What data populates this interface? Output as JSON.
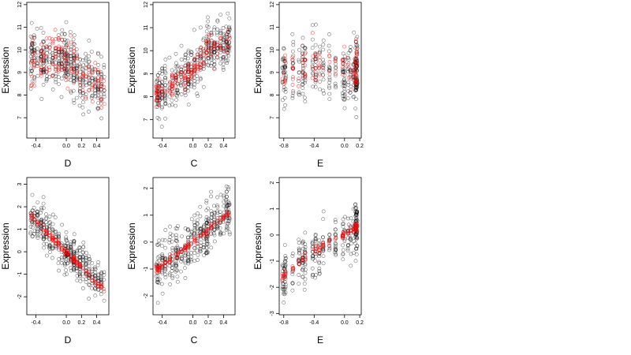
{
  "chart_data": [
    {
      "type": "scatter",
      "panel": "top-left",
      "xlabel": "D",
      "ylabel": "Expression",
      "xticks": [
        -0.4,
        0.0,
        0.2,
        0.4
      ],
      "xtick_labels": [
        "-0.4",
        "0.0",
        "0.2",
        "0.4"
      ],
      "yticks": [
        7,
        8,
        9,
        10,
        11,
        12
      ],
      "ytick_labels": [
        "7",
        "8",
        "9",
        "10",
        "11",
        "12"
      ],
      "xlim": [
        -0.52,
        0.56
      ],
      "ylim": [
        6.1,
        12.1
      ],
      "grid": false,
      "series": [
        {
          "color": "#000000",
          "marker": "open-circle",
          "description": "observed expression points (dense at x=0.0 and x=0.1)",
          "n_points": 420,
          "x_range": [
            -0.47,
            0.5
          ],
          "y_center_trend": [
            [
              -0.47,
              9.6
            ],
            [
              -0.2,
              9.5
            ],
            [
              0.0,
              9.7
            ],
            [
              0.1,
              9.3
            ],
            [
              0.2,
              8.6
            ],
            [
              0.5,
              8.2
            ]
          ],
          "y_spread": 1.1
        },
        {
          "color": "#ff0000",
          "marker": "open-circle",
          "description": "fitted expression points",
          "n_points": 150,
          "x_range": [
            -0.47,
            0.5
          ],
          "y_center_trend": [
            [
              -0.47,
              9.5
            ],
            [
              -0.2,
              9.7
            ],
            [
              0.0,
              9.6
            ],
            [
              0.1,
              9.2
            ],
            [
              0.2,
              8.9
            ],
            [
              0.5,
              8.2
            ]
          ],
          "y_spread": 0.9
        }
      ]
    },
    {
      "type": "scatter",
      "panel": "top-middle",
      "xlabel": "C",
      "ylabel": "Expression",
      "xticks": [
        -0.4,
        0.0,
        0.2,
        0.4
      ],
      "xtick_labels": [
        "-0.4",
        "0.0",
        "0.2",
        "0.4"
      ],
      "yticks": [
        7,
        8,
        9,
        10,
        11,
        12
      ],
      "ytick_labels": [
        "7",
        "8",
        "9",
        "10",
        "11",
        "12"
      ],
      "xlim": [
        -0.52,
        0.55
      ],
      "ylim": [
        6.2,
        12.1
      ],
      "grid": false,
      "series": [
        {
          "color": "#000000",
          "marker": "open-circle",
          "description": "observed expression points",
          "n_points": 420,
          "x_range": [
            -0.48,
            0.48
          ],
          "y_center_trend": [
            [
              -0.48,
              8.1
            ],
            [
              -0.2,
              8.7
            ],
            [
              0.0,
              9.1
            ],
            [
              0.2,
              9.9
            ],
            [
              0.48,
              10.4
            ]
          ],
          "y_spread": 0.9
        },
        {
          "color": "#ff0000",
          "marker": "open-circle",
          "description": "fitted expression points",
          "n_points": 160,
          "x_range": [
            -0.48,
            0.48
          ],
          "y_center_trend": [
            [
              -0.48,
              8.1
            ],
            [
              -0.2,
              8.7
            ],
            [
              0.0,
              9.2
            ],
            [
              0.2,
              9.9
            ],
            [
              0.48,
              10.4
            ]
          ],
          "y_spread": 0.45
        }
      ]
    },
    {
      "type": "scatter",
      "panel": "top-right",
      "xlabel": "E",
      "ylabel": "Expression",
      "xticks": [
        -0.8,
        -0.4,
        0.0,
        0.2
      ],
      "xtick_labels": [
        "-0.8",
        "-0.4",
        "0.0",
        "0.2"
      ],
      "yticks": [
        7,
        8,
        9,
        10,
        11,
        12
      ],
      "ytick_labels": [
        "7",
        "8",
        "9",
        "10",
        "11",
        "12"
      ],
      "xlim": [
        -0.86,
        0.22
      ],
      "ylim": [
        6.1,
        12.1
      ],
      "grid": false,
      "series": [
        {
          "color": "#000000",
          "marker": "open-circle",
          "description": "observed expression points (very dense near x=0.15)",
          "n_points": 330,
          "x_range": [
            -0.82,
            0.17
          ],
          "y_center_trend": [
            [
              -0.82,
              8.9
            ],
            [
              -0.4,
              9.4
            ],
            [
              0.0,
              8.9
            ],
            [
              0.15,
              9.0
            ]
          ],
          "y_spread": 1.2
        },
        {
          "color": "#ff0000",
          "marker": "open-circle",
          "description": "fitted expression points",
          "n_points": 120,
          "x_range": [
            -0.82,
            0.17
          ],
          "y_center_trend": [
            [
              -0.82,
              9.2
            ],
            [
              -0.4,
              9.5
            ],
            [
              0.0,
              9.2
            ],
            [
              0.15,
              9.0
            ]
          ],
          "y_spread": 0.9
        }
      ]
    },
    {
      "type": "scatter",
      "panel": "bottom-left",
      "xlabel": "D",
      "ylabel": "Expression",
      "xticks": [
        -0.4,
        0.0,
        0.2,
        0.4
      ],
      "xtick_labels": [
        "-0.4",
        "0.0",
        "0.2",
        "0.4"
      ],
      "yticks": [
        -2,
        -1,
        0,
        1,
        2,
        3
      ],
      "ytick_labels": [
        "-2",
        "-1",
        "0",
        "1",
        "2",
        "3"
      ],
      "xlim": [
        -0.52,
        0.56
      ],
      "ylim": [
        -2.8,
        3.3
      ],
      "grid": false,
      "series": [
        {
          "color": "#000000",
          "marker": "open-circle",
          "description": "observed expression points",
          "n_points": 420,
          "x_range": [
            -0.47,
            0.5
          ],
          "y_center_trend": [
            [
              -0.47,
              1.6
            ],
            [
              0.0,
              0.0
            ],
            [
              0.5,
              -1.5
            ]
          ],
          "y_spread": 0.75
        },
        {
          "color": "#ff0000",
          "marker": "open-circle",
          "description": "fitted expression points (near-linear decreasing band)",
          "n_points": 140,
          "x_range": [
            -0.47,
            0.5
          ],
          "y_center_trend": [
            [
              -0.47,
              1.6
            ],
            [
              0.0,
              0.0
            ],
            [
              0.5,
              -1.7
            ]
          ],
          "y_spread": 0.12
        }
      ]
    },
    {
      "type": "scatter",
      "panel": "bottom-middle",
      "xlabel": "C",
      "ylabel": "Expression",
      "xticks": [
        -0.4,
        0.0,
        0.2,
        0.4
      ],
      "xtick_labels": [
        "-0.4",
        "0.0",
        "0.2",
        "0.4"
      ],
      "yticks": [
        -2,
        -1,
        0,
        1,
        2
      ],
      "ytick_labels": [
        "-2",
        "-1",
        "0",
        "1",
        "2"
      ],
      "xlim": [
        -0.52,
        0.55
      ],
      "ylim": [
        -2.7,
        2.4
      ],
      "grid": false,
      "series": [
        {
          "color": "#000000",
          "marker": "open-circle",
          "description": "observed expression points",
          "n_points": 420,
          "x_range": [
            -0.48,
            0.48
          ],
          "y_center_trend": [
            [
              -0.48,
              -1.0
            ],
            [
              0.0,
              0.0
            ],
            [
              0.48,
              1.1
            ]
          ],
          "y_spread": 0.8
        },
        {
          "color": "#ff0000",
          "marker": "open-circle",
          "description": "fitted expression points (near-linear increasing band)",
          "n_points": 140,
          "x_range": [
            -0.48,
            0.48
          ],
          "y_center_trend": [
            [
              -0.48,
              -1.05
            ],
            [
              0.0,
              0.0
            ],
            [
              0.48,
              1.1
            ]
          ],
          "y_spread": 0.1
        }
      ]
    },
    {
      "type": "scatter",
      "panel": "bottom-right",
      "xlabel": "E",
      "ylabel": "Expression",
      "xticks": [
        -0.8,
        -0.4,
        0.0,
        0.2
      ],
      "xtick_labels": [
        "-0.8",
        "-0.4",
        "0.0",
        "0.2"
      ],
      "yticks": [
        -3,
        -2,
        -1,
        0,
        1,
        2
      ],
      "ytick_labels": [
        "-3",
        "-2",
        "-1",
        "0",
        "1",
        "2"
      ],
      "xlim": [
        -0.86,
        0.22
      ],
      "ylim": [
        -3.05,
        2.2
      ],
      "grid": false,
      "series": [
        {
          "color": "#000000",
          "marker": "open-circle",
          "description": "observed expression points (very dense near x=0.15)",
          "n_points": 330,
          "x_range": [
            -0.82,
            0.17
          ],
          "y_center_trend": [
            [
              -0.82,
              -1.6
            ],
            [
              -0.4,
              -0.6
            ],
            [
              0.0,
              0.0
            ],
            [
              0.15,
              0.3
            ]
          ],
          "y_spread": 0.8
        },
        {
          "color": "#ff0000",
          "marker": "open-circle",
          "description": "fitted expression points (increasing band)",
          "n_points": 120,
          "x_range": [
            -0.82,
            0.17
          ],
          "y_center_trend": [
            [
              -0.82,
              -1.6
            ],
            [
              -0.4,
              -0.6
            ],
            [
              0.0,
              0.0
            ],
            [
              0.15,
              0.3
            ]
          ],
          "y_spread": 0.12
        }
      ]
    }
  ]
}
